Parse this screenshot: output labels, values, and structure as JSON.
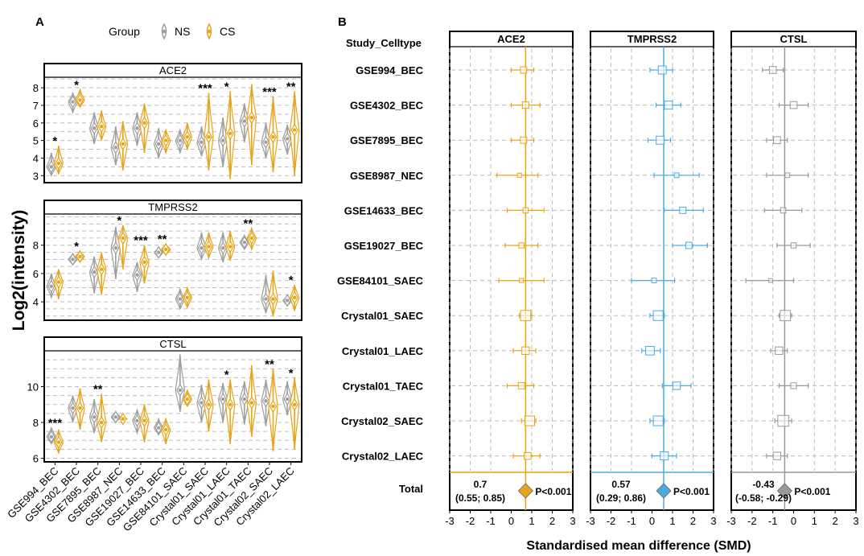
{
  "chart_data": [
    {
      "panel": "A",
      "type": "violin",
      "ylabel": "Log2(intensity)",
      "legend": {
        "title": "Group",
        "entries": [
          "NS",
          "CS"
        ],
        "placement": "top"
      },
      "categories": [
        "GSE994_BEC",
        "GSE4302_BEC",
        "GSE7895_BEC",
        "GSE8987_NEC",
        "GSE19027_BEC",
        "GSE14633_BEC",
        "GSE84101_SAEC",
        "Crystal01_SAEC",
        "Crystal01_LAEC",
        "Crystal01_TAEC",
        "Crystal02_SAEC",
        "Crystal02_LAEC"
      ],
      "subplots": [
        {
          "title": "ACE2",
          "ylim": [
            2.6,
            8.6
          ],
          "yticks": [
            3,
            4,
            5,
            6,
            7,
            8
          ],
          "NS": {
            "median": [
              3.5,
              7.2,
              5.7,
              4.6,
              5.7,
              4.8,
              5.0,
              4.9,
              5.0,
              6.1,
              4.9,
              5.1
            ],
            "low": [
              3.0,
              6.6,
              4.8,
              3.6,
              4.7,
              4.0,
              4.3,
              4.1,
              3.5,
              4.9,
              4.0,
              4.2
            ],
            "high": [
              4.3,
              7.7,
              6.6,
              5.8,
              6.6,
              5.7,
              5.6,
              5.8,
              6.3,
              7.1,
              6.0,
              5.9
            ]
          },
          "CS": {
            "median": [
              3.7,
              7.3,
              5.8,
              4.8,
              6.0,
              5.0,
              5.2,
              5.2,
              5.4,
              6.3,
              5.2,
              5.6
            ],
            "low": [
              3.1,
              6.9,
              5.0,
              3.3,
              4.3,
              4.3,
              4.5,
              3.3,
              2.8,
              3.6,
              3.2,
              3.0
            ],
            "high": [
              4.7,
              7.9,
              6.7,
              6.1,
              7.1,
              5.6,
              6.0,
              7.7,
              7.8,
              8.2,
              7.5,
              7.8
            ]
          },
          "significance": [
            "*",
            "*",
            "",
            "",
            "",
            "",
            "",
            "***",
            "*",
            "",
            "***",
            "**"
          ]
        },
        {
          "title": "TMPRSS2",
          "ylim": [
            2.7,
            10.2
          ],
          "yticks": [
            4,
            6,
            8
          ],
          "NS": {
            "median": [
              5.1,
              7.0,
              6.1,
              7.8,
              5.9,
              7.5,
              4.2,
              7.8,
              7.8,
              8.2,
              4.2,
              4.1
            ],
            "low": [
              4.3,
              6.6,
              4.6,
              5.6,
              4.7,
              7.1,
              3.5,
              7.0,
              6.8,
              7.7,
              3.2,
              3.7
            ],
            "high": [
              6.0,
              7.4,
              7.2,
              9.3,
              6.8,
              7.8,
              4.9,
              8.9,
              8.9,
              8.7,
              5.9,
              4.4
            ]
          },
          "CS": {
            "median": [
              5.4,
              7.2,
              6.3,
              8.5,
              6.8,
              7.7,
              4.3,
              7.9,
              7.9,
              8.5,
              4.2,
              4.3
            ],
            "low": [
              4.2,
              6.8,
              4.5,
              6.3,
              5.3,
              7.3,
              3.6,
              7.1,
              6.9,
              7.7,
              3.0,
              3.4
            ],
            "high": [
              6.3,
              7.6,
              7.5,
              9.4,
              8.0,
              8.1,
              5.0,
              8.9,
              9.0,
              9.2,
              6.2,
              5.2
            ]
          },
          "significance": [
            "",
            "*",
            "",
            "*",
            "***",
            "**",
            "",
            "",
            "",
            "**",
            "",
            "*"
          ]
        },
        {
          "title": "CTSL",
          "ylim": [
            5.8,
            12.0
          ],
          "yticks": [
            6,
            8,
            10
          ],
          "NS": {
            "median": [
              7.2,
              8.8,
              8.3,
              8.3,
              8.1,
              7.7,
              9.8,
              9.1,
              9.3,
              9.3,
              9.2,
              9.3
            ],
            "low": [
              6.8,
              8.0,
              7.4,
              8.0,
              7.4,
              7.3,
              8.6,
              8.0,
              8.0,
              7.9,
              7.8,
              8.4
            ],
            "high": [
              7.7,
              9.5,
              9.3,
              8.6,
              8.7,
              8.2,
              11.8,
              10.1,
              10.2,
              10.3,
              10.4,
              10.3
            ]
          },
          "CS": {
            "median": [
              6.9,
              8.8,
              8.0,
              8.2,
              8.1,
              7.6,
              9.3,
              9.0,
              9.0,
              9.1,
              8.9,
              9.0
            ],
            "low": [
              6.3,
              7.6,
              6.9,
              8.1,
              6.9,
              6.8,
              8.9,
              7.5,
              6.8,
              7.2,
              6.4,
              6.5
            ],
            "high": [
              7.6,
              9.9,
              9.6,
              8.3,
              9.0,
              8.2,
              9.8,
              10.4,
              10.4,
              11.2,
              11.0,
              10.5
            ]
          },
          "significance": [
            "***",
            "",
            "**",
            "",
            "",
            "",
            "",
            "",
            "*",
            "",
            "**",
            "*"
          ]
        }
      ]
    },
    {
      "panel": "B",
      "type": "forest",
      "row_header": "Study_Celltype",
      "xlabel": "Standardised mean difference (SMD)",
      "xlim": [
        -3,
        3
      ],
      "xticks": [
        -3,
        -2,
        -1,
        0,
        1,
        2,
        3
      ],
      "studies": [
        "GSE994_BEC",
        "GSE4302_BEC",
        "GSE7895_BEC",
        "GSE8987_NEC",
        "GSE14633_BEC",
        "GSE19027_BEC",
        "GSE84101_SAEC",
        "Crystal01_SAEC",
        "Crystal01_LAEC",
        "Crystal01_TAEC",
        "Crystal02_SAEC",
        "Crystal02_LAEC"
      ],
      "total_label": "Total",
      "panels": [
        {
          "title": "ACE2",
          "color": "#e8a317",
          "smd": [
            0.6,
            0.7,
            0.6,
            0.4,
            0.7,
            0.5,
            0.5,
            0.7,
            0.7,
            0.5,
            0.9,
            0.8
          ],
          "lo": [
            0.0,
            0.0,
            0.0,
            -0.7,
            -0.2,
            -0.3,
            -0.6,
            0.4,
            0.1,
            -0.2,
            0.5,
            0.1
          ],
          "hi": [
            1.1,
            1.4,
            1.1,
            1.3,
            1.6,
            1.3,
            1.6,
            1.0,
            1.2,
            1.1,
            1.2,
            1.4
          ],
          "weight": [
            0.35,
            0.35,
            0.35,
            0.15,
            0.25,
            0.25,
            0.15,
            0.7,
            0.45,
            0.35,
            0.65,
            0.4
          ],
          "pooled": 0.7,
          "pooled_value": "0.7",
          "pooled_ci": "(0.55; 0.85)",
          "p_label": "P<0.001"
        },
        {
          "title": "TMPRSS2",
          "color": "#4aabe0",
          "smd": [
            0.5,
            0.8,
            0.4,
            1.2,
            1.5,
            1.8,
            0.1,
            0.3,
            -0.1,
            1.2,
            0.3,
            0.6
          ],
          "lo": [
            -0.1,
            0.2,
            -0.2,
            0.1,
            0.6,
            1.0,
            -1.0,
            -0.1,
            -0.5,
            0.5,
            -0.1,
            0.0
          ],
          "hi": [
            1.0,
            1.4,
            0.9,
            2.3,
            2.5,
            2.7,
            1.1,
            0.6,
            0.4,
            1.9,
            0.6,
            1.2
          ],
          "weight": [
            0.5,
            0.5,
            0.5,
            0.2,
            0.35,
            0.35,
            0.2,
            0.65,
            0.55,
            0.45,
            0.65,
            0.5
          ],
          "pooled": 0.57,
          "pooled_value": "0.57",
          "pooled_ci": "(0.29; 0.86)",
          "p_label": "P<0.001"
        },
        {
          "title": "CTSL",
          "color": "#999999",
          "smd": [
            -1.0,
            0.0,
            -0.8,
            -0.3,
            -0.5,
            0.0,
            -1.1,
            -0.4,
            -0.7,
            0.0,
            -0.5,
            -0.8
          ],
          "lo": [
            -1.5,
            -0.7,
            -1.3,
            -1.3,
            -1.4,
            -0.8,
            -2.3,
            -0.7,
            -1.1,
            -0.7,
            -0.9,
            -1.3
          ],
          "hi": [
            -0.5,
            0.7,
            -0.3,
            0.7,
            0.4,
            0.8,
            0.0,
            -0.1,
            -0.3,
            0.7,
            -0.1,
            -0.3
          ],
          "weight": [
            0.4,
            0.4,
            0.4,
            0.2,
            0.25,
            0.25,
            0.12,
            0.7,
            0.45,
            0.3,
            0.75,
            0.45
          ],
          "pooled": -0.43,
          "pooled_value": "-0.43",
          "pooled_ci": "(-0.58; -0.29)",
          "p_label": "P<0.001"
        }
      ]
    }
  ],
  "labels": {
    "panel_a": "A",
    "panel_b": "B"
  },
  "colors": {
    "ns": "#9e9e9e",
    "cs": "#e8a317",
    "grid": "#bdbdbd"
  }
}
